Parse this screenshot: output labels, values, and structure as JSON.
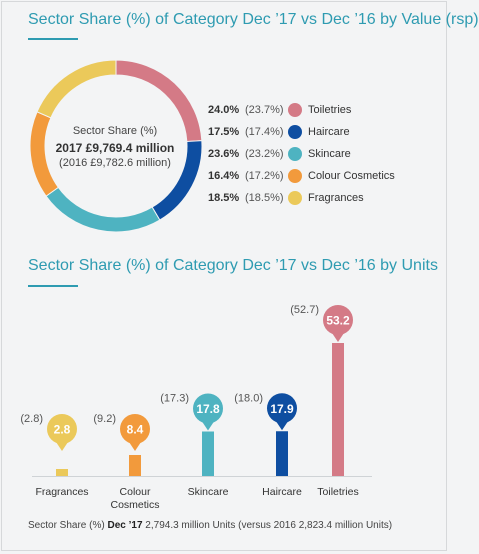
{
  "colors": {
    "toiletries": "#d47a86",
    "haircare": "#0e4ea1",
    "skincare": "#4eb3c1",
    "colour_cosmetics": "#f29a3c",
    "fragrances": "#ebc95a"
  },
  "value_section": {
    "title": "Sector Share (%) of Category Dec ’17 vs Dec ’16 by Value (rsp)",
    "center_line1": "Sector Share (%)",
    "center_line2": "2017 £9,769.4 million",
    "center_line3": "(2016 £9,782.6 million)"
  },
  "units_section": {
    "title": "Sector Share (%) of Category Dec ’17 vs Dec ’16 by Units"
  },
  "footer": {
    "prefix": "Sector Share (%) ",
    "bold": "Dec ’17",
    "rest": " 2,794.3 million Units (versus 2016 2,823.4 million Units)"
  },
  "chart_data": [
    {
      "type": "pie",
      "title": "Sector Share (%) of Category Dec ’17 vs Dec ’16 by Value (rsp)",
      "categories": [
        "Toiletries",
        "Haircare",
        "Skincare",
        "Colour Cosmetics",
        "Fragrances"
      ],
      "series": [
        {
          "name": "2017",
          "values": [
            24.0,
            17.5,
            23.6,
            16.4,
            18.5
          ]
        },
        {
          "name": "2016",
          "values": [
            23.7,
            17.4,
            23.2,
            17.2,
            18.5
          ]
        }
      ],
      "value_labels": [
        "24.0%",
        "17.5%",
        "23.6%",
        "16.4%",
        "18.5%"
      ],
      "prev_labels": [
        "(23.7%)",
        "(17.4%)",
        "(23.2%)",
        "(17.2%)",
        "(18.5%)"
      ],
      "legend": "right"
    },
    {
      "type": "bar",
      "title": "Sector Share (%) of Category Dec ’17 vs Dec ’16 by Units",
      "categories": [
        "Fragrances",
        "Colour Cosmetics",
        "Skincare",
        "Haircare",
        "Toiletries"
      ],
      "category_lines": [
        [
          "Fragrances"
        ],
        [
          "Colour",
          "Cosmetics"
        ],
        [
          "Skincare"
        ],
        [
          "Haircare"
        ],
        [
          "Toiletries"
        ]
      ],
      "series": [
        {
          "name": "2017",
          "values": [
            2.8,
            8.4,
            17.8,
            17.9,
            53.2
          ]
        },
        {
          "name": "2016",
          "values": [
            2.8,
            9.2,
            17.3,
            18.0,
            52.7
          ]
        }
      ],
      "value_labels": [
        "2.8",
        "8.4",
        "17.8",
        "17.9",
        "53.2"
      ],
      "prev_labels": [
        "(2.8)",
        "(9.2)",
        "(17.3)",
        "(18.0)",
        "(52.7)"
      ],
      "ylim": [
        0,
        53.2
      ],
      "grid": false
    }
  ]
}
